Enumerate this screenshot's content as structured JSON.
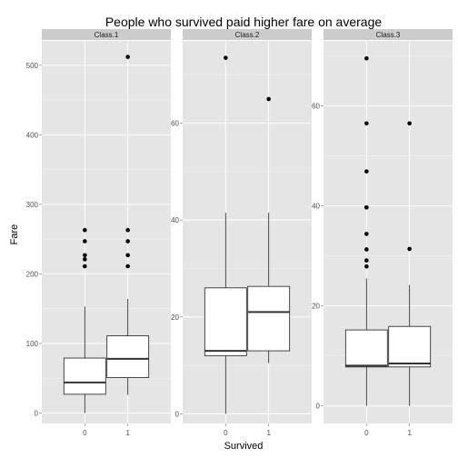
{
  "chart_data": {
    "type": "box",
    "title": "People who survived paid higher fare on average",
    "xlabel": "Survived",
    "ylabel": "Fare",
    "facet_layout": "1 row, 3 columns, independent y scales",
    "colors": {
      "panel_background": "#e5e5e5",
      "strip_background": "#cccccc",
      "grid": "#ffffff",
      "box_fill": "#ffffff",
      "box_line": "#333333",
      "outlier": "#000000"
    },
    "facets": [
      {
        "strip": "Class.1",
        "ylim": [
          -15,
          535
        ],
        "yticks": [
          0,
          100,
          200,
          300,
          400,
          500
        ],
        "categories": [
          "0",
          "1"
        ],
        "boxes": [
          {
            "x": "0",
            "lower_whisker": 0,
            "q1": 27,
            "median": 44,
            "q3": 79,
            "upper_whisker": 153,
            "outliers": [
              211,
              221,
              227,
              247,
              263
            ]
          },
          {
            "x": "1",
            "lower_whisker": 26,
            "q1": 51,
            "median": 78,
            "q3": 111,
            "upper_whisker": 164,
            "outliers": [
              211,
              227,
              247,
              263,
              512
            ]
          }
        ]
      },
      {
        "strip": "Class.2",
        "ylim": [
          -2,
          77
        ],
        "yticks": [
          0,
          20,
          40,
          60
        ],
        "categories": [
          "0",
          "1"
        ],
        "boxes": [
          {
            "x": "0",
            "lower_whisker": 0,
            "q1": 12,
            "median": 13,
            "q3": 26,
            "upper_whisker": 41.5,
            "outliers": [
              73.5
            ]
          },
          {
            "x": "1",
            "lower_whisker": 10.5,
            "q1": 13,
            "median": 21,
            "q3": 26.3,
            "upper_whisker": 41.5,
            "outliers": [
              65
            ]
          }
        ]
      },
      {
        "strip": "Class.3",
        "ylim": [
          -3.5,
          73
        ],
        "yticks": [
          0,
          20,
          40,
          60
        ],
        "categories": [
          "0",
          "1"
        ],
        "boxes": [
          {
            "x": "0",
            "lower_whisker": 0,
            "q1": 7.8,
            "median": 8.05,
            "q3": 15.2,
            "upper_whisker": 25.5,
            "outliers": [
              27.9,
              29.1,
              31.3,
              34.4,
              39.7,
              39.7,
              46.9,
              56.5,
              69.5
            ]
          },
          {
            "x": "1",
            "lower_whisker": 0,
            "q1": 7.8,
            "median": 8.5,
            "q3": 15.9,
            "upper_whisker": 24.2,
            "outliers": [
              31.4,
              56.5
            ]
          }
        ]
      }
    ]
  }
}
